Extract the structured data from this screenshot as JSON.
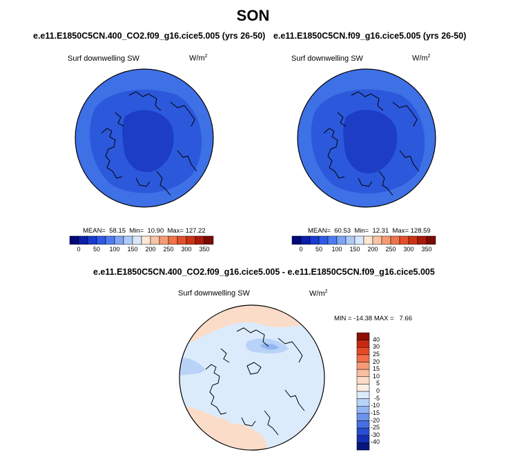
{
  "title": "SON",
  "panel_left": {
    "case": "e.e11.E1850C5CN.400_CO2.f09_g16.cice5.005 (yrs 26-50)",
    "variable": "Surf downwelling SW",
    "units_base": "W/m",
    "units_exp": "2",
    "stats": "MEAN=  58.15  Min=  10.90  Max= 127.22"
  },
  "panel_right": {
    "case": "e.e11.E1850C5CN.f09_g16.cice5.005 (yrs 26-50)",
    "variable": "Surf downwelling SW",
    "units_base": "W/m",
    "units_exp": "2",
    "stats": "MEAN=  60.53  Min=  12.31  Max= 128.59"
  },
  "panel_diff": {
    "case": "e.e11.E1850C5CN.400_CO2.f09_g16.cice5.005 - e.e11.E1850C5CN.f09_g16.cice5.005",
    "variable": "Surf downwelling SW",
    "units_base": "W/m",
    "units_exp": "2",
    "stats": "MIN = -14.38 MAX =   7.66"
  },
  "colorbar_abs": {
    "ticks": [
      "0",
      "50",
      "100",
      "150",
      "200",
      "250",
      "300",
      "350"
    ],
    "colors": [
      "#000a7a",
      "#0b1fa8",
      "#1a3ad0",
      "#2f58e6",
      "#4f7bf0",
      "#7ea4f5",
      "#aecbf8",
      "#d9e8fc",
      "#fde7d6",
      "#f8c4a4",
      "#f49c74",
      "#ee7449",
      "#e2502a",
      "#cc3216",
      "#a91b09",
      "#7a0a03"
    ]
  },
  "colorbar_diff": {
    "ticks": [
      "40",
      "30",
      "25",
      "20",
      "15",
      "10",
      "5",
      "0",
      "-5",
      "-10",
      "-15",
      "-20",
      "-25",
      "-30",
      "-40"
    ],
    "colors": [
      "#8e0f06",
      "#c42a12",
      "#e44a28",
      "#f26d48",
      "#f69a76",
      "#f8bea0",
      "#fbdcc8",
      "#fdeee4",
      "#dcebfc",
      "#b9d3f8",
      "#93b6f3",
      "#6b93ec",
      "#466fe0",
      "#2a4ed0",
      "#1530b4",
      "#06157e"
    ]
  },
  "map_fill": {
    "left": {
      "outer": "#3e70e6",
      "mid": "#2c58dc",
      "inner": "#1c3dc4"
    },
    "right": {
      "outer": "#3e70e6",
      "mid": "#2c58dc",
      "inner": "#1c3dc4"
    },
    "diff": {
      "base": "#dcebfc",
      "warm": "#fbdcc8",
      "cool": "#b9d3f8",
      "cooler": "#93b6f3"
    }
  }
}
